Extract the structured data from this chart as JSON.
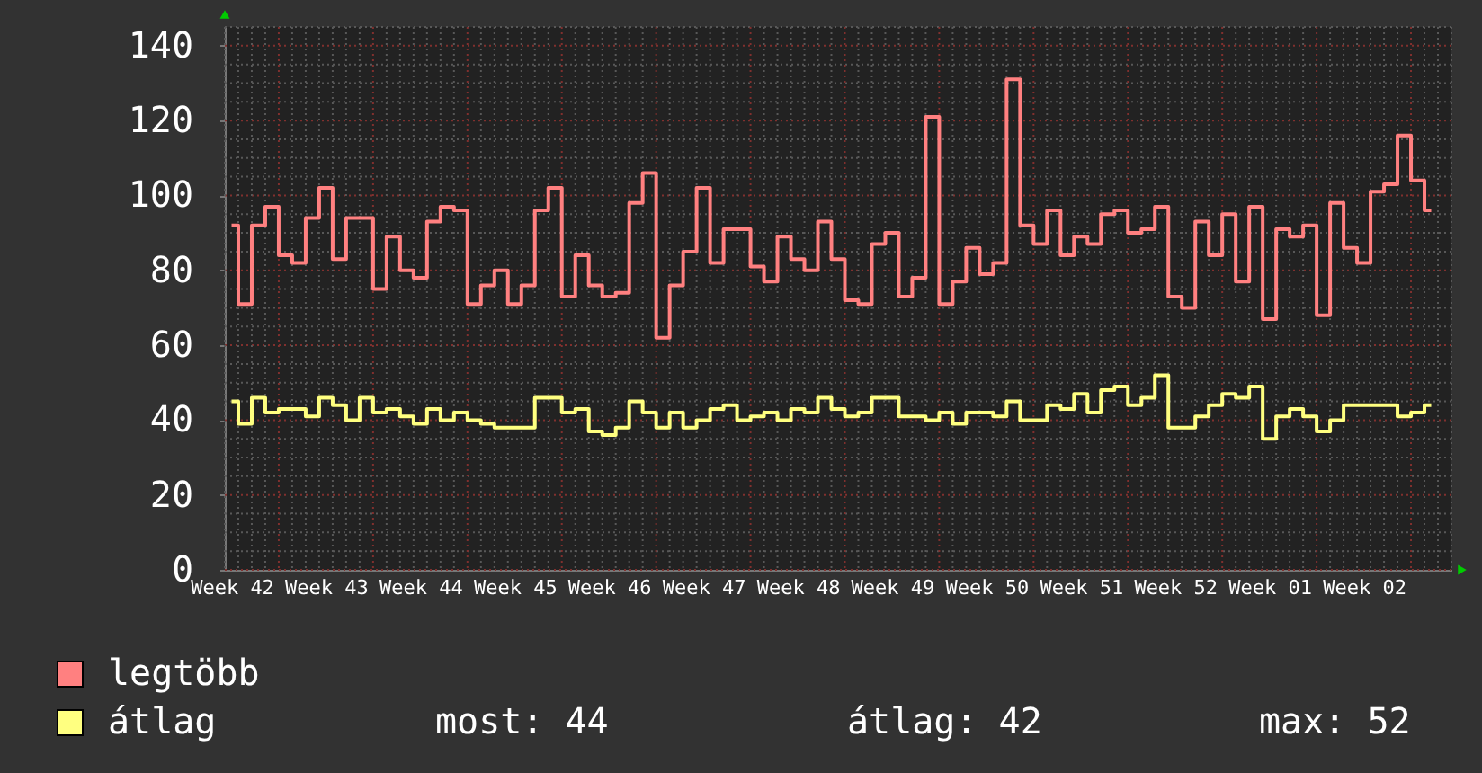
{
  "chart_data": {
    "type": "step",
    "categories": [
      "Week 42",
      null,
      null,
      null,
      null,
      null,
      null,
      "Week 43",
      null,
      null,
      null,
      null,
      null,
      null,
      "Week 44",
      null,
      null,
      null,
      null,
      null,
      null,
      "Week 45",
      null,
      null,
      null,
      null,
      null,
      null,
      "Week 46",
      null,
      null,
      null,
      null,
      null,
      null,
      "Week 47",
      null,
      null,
      null,
      null,
      null,
      null,
      "Week 48",
      null,
      null,
      null,
      null,
      null,
      null,
      "Week 49",
      null,
      null,
      null,
      null,
      null,
      null,
      "Week 50",
      null,
      null,
      null,
      null,
      null,
      null,
      "Week 51",
      null,
      null,
      null,
      null,
      null,
      null,
      "Week 52",
      null,
      null,
      null,
      null,
      null,
      null,
      "Week 01",
      null,
      null,
      null,
      null,
      null,
      null,
      "Week 02",
      null,
      null,
      null,
      null,
      null,
      null
    ],
    "ylim": [
      0,
      145
    ],
    "yticks": [
      0,
      {
        "value": 5,
        "label": null
      },
      {
        "value": 10,
        "label": null
      },
      {
        "value": 15,
        "label": null
      },
      20,
      {
        "value": 25,
        "label": null
      },
      {
        "value": 30,
        "label": null
      },
      {
        "value": 35,
        "label": null
      },
      40,
      {
        "value": 45,
        "label": null
      },
      {
        "value": 50,
        "label": null
      },
      {
        "value": 55,
        "label": null
      },
      60,
      {
        "value": 65,
        "label": null
      },
      {
        "value": 70,
        "label": null
      },
      {
        "value": 75,
        "label": null
      },
      80,
      {
        "value": 85,
        "label": null
      },
      {
        "value": 90,
        "label": null
      },
      {
        "value": 95,
        "label": null
      },
      100,
      {
        "value": 105,
        "label": null
      },
      {
        "value": 110,
        "label": null
      },
      {
        "value": 115,
        "label": null
      },
      120,
      {
        "value": 125,
        "label": null
      },
      {
        "value": 130,
        "label": null
      },
      {
        "value": 135,
        "label": null
      },
      140,
      {
        "value": 145,
        "label": null
      }
    ],
    "series": [
      {
        "name": "legtöbb",
        "color": "#ff8080",
        "values": [
          92,
          71,
          92,
          97,
          84,
          82,
          94,
          102,
          83,
          94,
          94,
          75,
          89,
          80,
          78,
          93,
          97,
          96,
          71,
          76,
          80,
          71,
          76,
          96,
          102,
          73,
          84,
          76,
          73,
          74,
          98,
          106,
          62,
          76,
          85,
          102,
          82,
          91,
          91,
          81,
          77,
          89,
          83,
          80,
          93,
          83,
          72,
          71,
          87,
          90,
          73,
          78,
          121,
          71,
          77,
          86,
          79,
          82,
          131,
          92,
          87,
          96,
          84,
          89,
          87,
          95,
          96,
          90,
          91,
          97,
          73,
          70,
          93,
          84,
          95,
          77,
          97,
          67,
          91,
          89,
          92,
          68,
          98,
          86,
          82,
          101,
          103,
          116,
          104,
          96,
          null
        ]
      },
      {
        "name": "átlag",
        "color": "#ffff80",
        "values": [
          45,
          39,
          46,
          42,
          43,
          43,
          41,
          46,
          44,
          40,
          46,
          42,
          43,
          41,
          39,
          43,
          40,
          42,
          40,
          39,
          38,
          38,
          38,
          46,
          46,
          42,
          43,
          37,
          36,
          38,
          45,
          42,
          38,
          42,
          38,
          40,
          43,
          44,
          40,
          41,
          42,
          40,
          43,
          42,
          46,
          43,
          41,
          42,
          46,
          46,
          41,
          41,
          40,
          42,
          39,
          42,
          42,
          41,
          45,
          40,
          40,
          44,
          43,
          47,
          42,
          48,
          49,
          44,
          46,
          52,
          38,
          38,
          41,
          44,
          47,
          46,
          49,
          35,
          41,
          43,
          41,
          37,
          40,
          44,
          44,
          44,
          44,
          41,
          42,
          44,
          null
        ]
      }
    ],
    "grid": true,
    "legend": "bottom left",
    "annotations": [
      "most: 44",
      "átlag: 42",
      "max: 52"
    ]
  }
}
